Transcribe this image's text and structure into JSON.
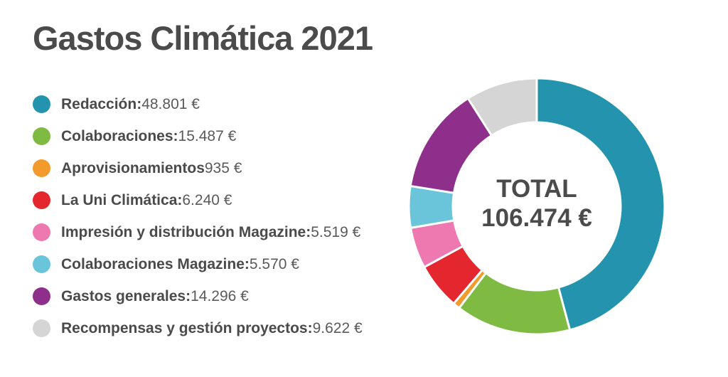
{
  "chart_data": {
    "type": "pie",
    "title": "Gastos Climática 2021",
    "total_label": "TOTAL",
    "total_value": "106.474 €",
    "slices": [
      {
        "label": "Redacción",
        "separator": ":",
        "value_text": " 48.801 €",
        "value": 48801,
        "color": "#2493ad"
      },
      {
        "label": "Colaboraciones",
        "separator": ":",
        "value_text": " 15.487 €",
        "value": 15487,
        "color": "#7fba42"
      },
      {
        "label": "Aprovisionamientos",
        "separator": "",
        "value_text": " 935 €",
        "value": 935,
        "color": "#f39a2c"
      },
      {
        "label": "La Uni Climática",
        "separator": ":",
        "value_text": " 6.240 €",
        "value": 6240,
        "color": "#e4262f"
      },
      {
        "label": "Impresión y distribución Magazine",
        "separator": ":",
        "value_text": " 5.519 €",
        "value": 5519,
        "color": "#ee79b0"
      },
      {
        "label": "Colaboraciones Magazine",
        "separator": ":",
        "value_text": " 5.570 €",
        "value": 5570,
        "color": "#6ac5da"
      },
      {
        "label": "Gastos generales",
        "separator": ":",
        "value_text": " 14.296 €",
        "value": 14296,
        "color": "#8e2f8c"
      },
      {
        "label": "Recompensas y gestión proyectos",
        "separator": ":",
        "value_text": " 9.622 €",
        "value": 9622,
        "color": "#d5d5d5"
      }
    ]
  }
}
